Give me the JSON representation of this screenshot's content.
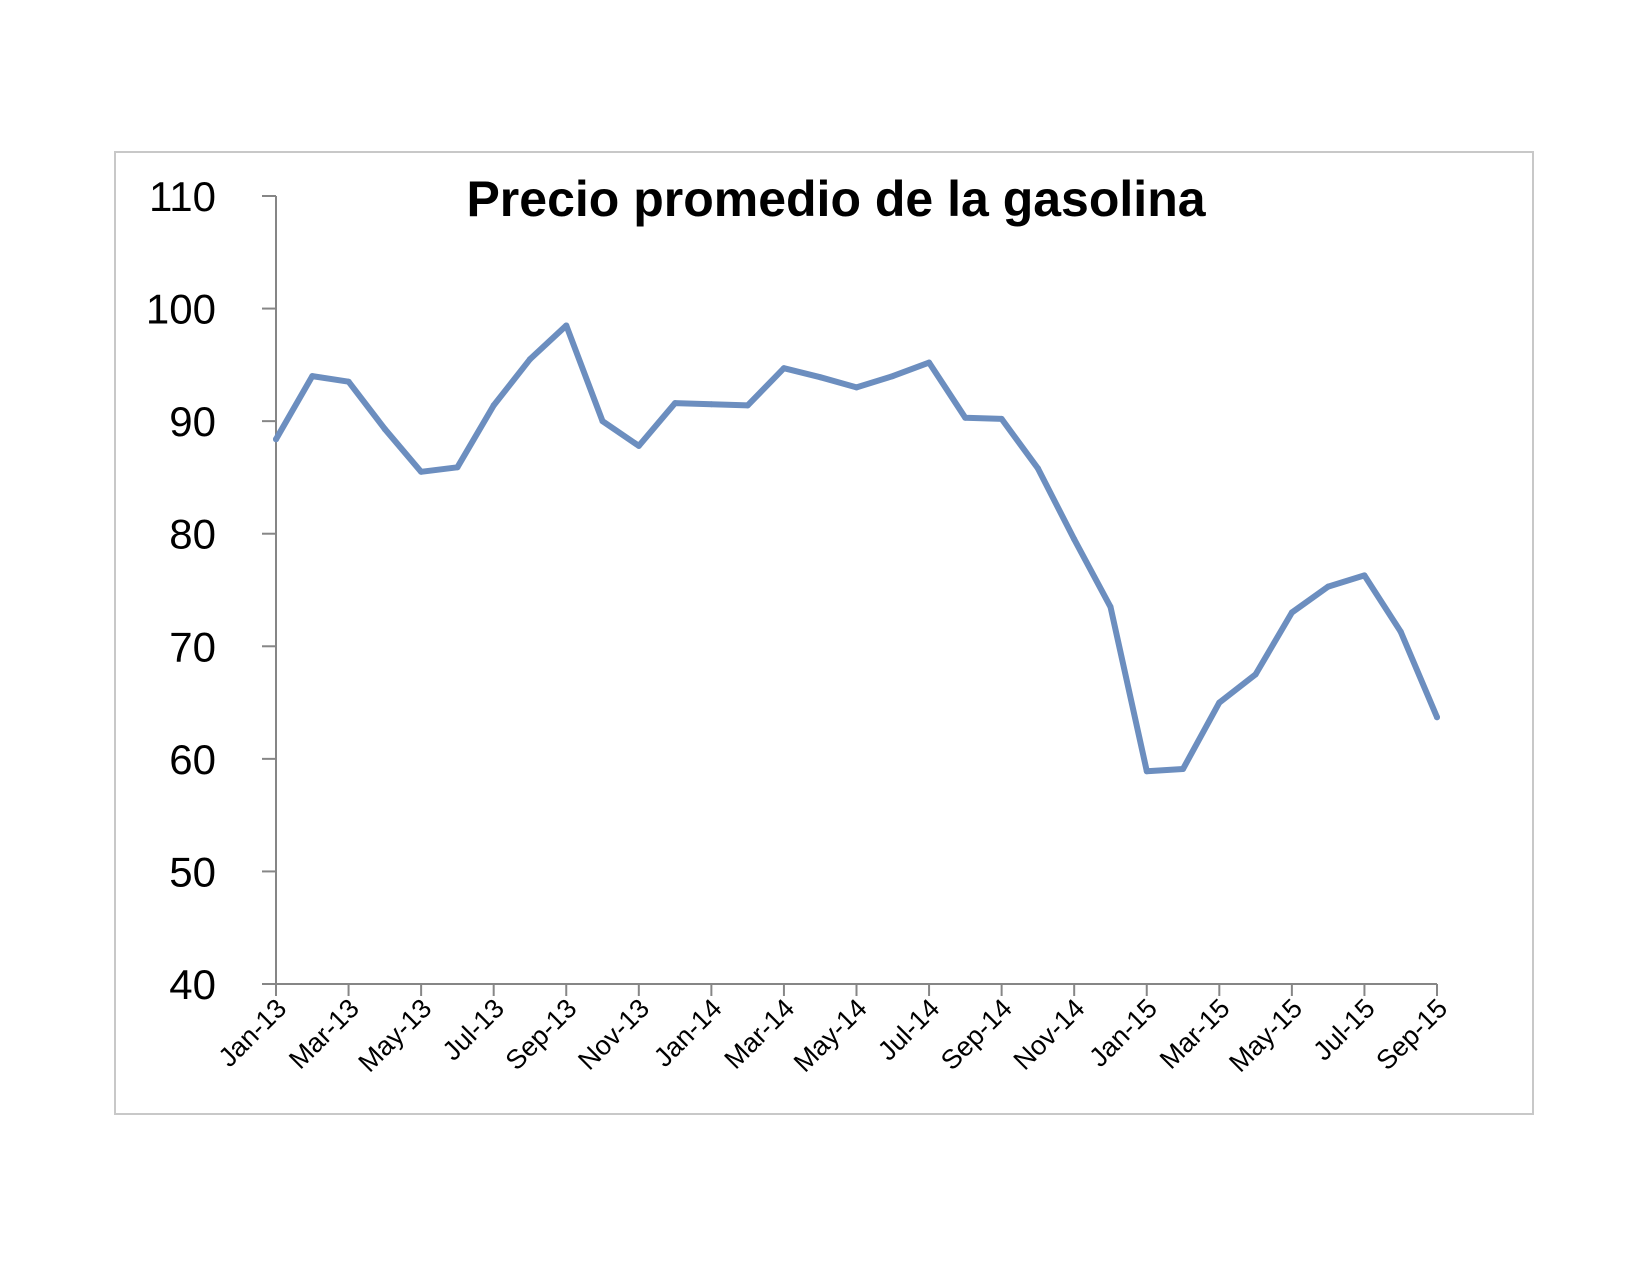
{
  "chart_data": {
    "type": "line",
    "title": "Precio promedio de la gasolina",
    "xlabel": "",
    "ylabel": "",
    "ylim": [
      40,
      110
    ],
    "yticks": [
      40,
      50,
      60,
      70,
      80,
      90,
      100,
      110
    ],
    "grid": false,
    "legend": "none",
    "x": [
      "Jan-13",
      "Feb-13",
      "Mar-13",
      "Apr-13",
      "May-13",
      "Jun-13",
      "Jul-13",
      "Aug-13",
      "Sep-13",
      "Oct-13",
      "Nov-13",
      "Dec-13",
      "Jan-14",
      "Feb-14",
      "Mar-14",
      "Apr-14",
      "May-14",
      "Jun-14",
      "Jul-14",
      "Aug-14",
      "Sep-14",
      "Oct-14",
      "Nov-14",
      "Dec-14",
      "Jan-15",
      "Feb-15",
      "Mar-15",
      "Apr-15",
      "May-15",
      "Jun-15",
      "Jul-15",
      "Aug-15",
      "Sep-15"
    ],
    "xtick_labels": [
      "Jan-13",
      "Mar-13",
      "May-13",
      "Jul-13",
      "Sep-13",
      "Nov-13",
      "Jan-14",
      "Mar-14",
      "May-14",
      "Jul-14",
      "Sep-14",
      "Nov-14",
      "Jan-15",
      "Mar-15",
      "May-15",
      "Jul-15",
      "Sep-15"
    ],
    "series": [
      {
        "color": "#6c8ebf",
        "values": [
          88.4,
          94.0,
          93.5,
          89.3,
          85.5,
          85.9,
          91.4,
          95.5,
          98.5,
          90.0,
          87.8,
          91.6,
          91.5,
          91.4,
          94.7,
          93.9,
          93.0,
          94.0,
          95.2,
          90.3,
          90.2,
          85.8,
          79.5,
          73.5,
          58.9,
          59.1,
          65.0,
          67.5,
          73.0,
          75.3,
          76.3,
          71.3,
          63.7
        ]
      }
    ]
  }
}
